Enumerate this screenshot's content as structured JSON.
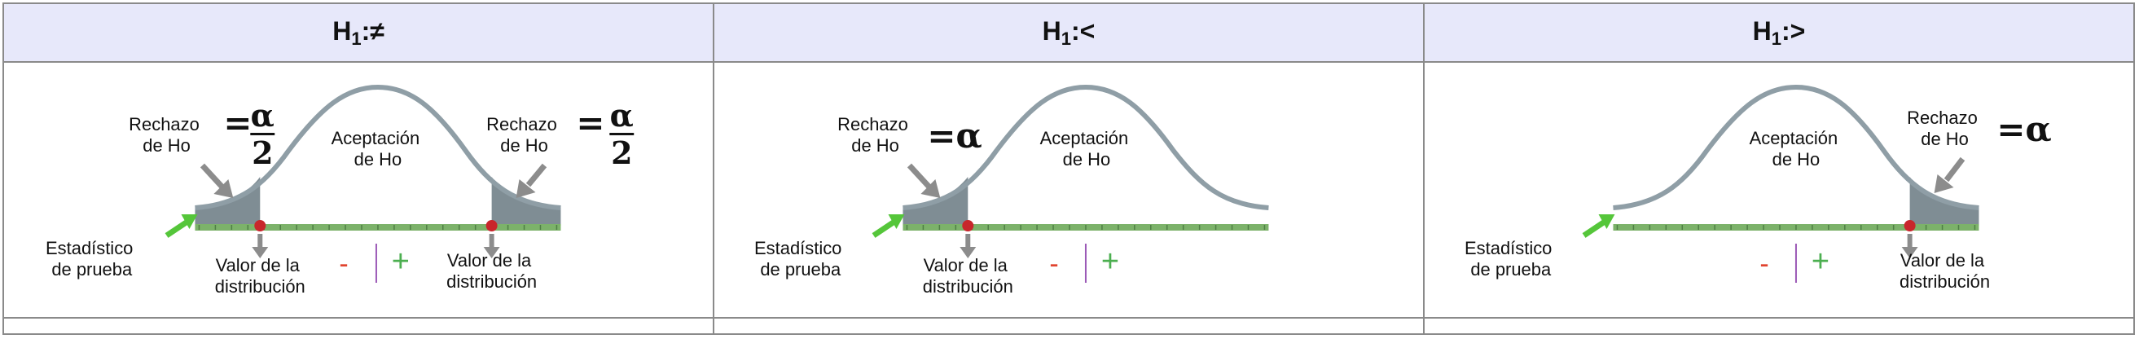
{
  "columns": [
    {
      "hyp_prefix": "H",
      "hyp_sub": "1",
      "hyp_sign": ":≠",
      "reject_label_lines": [
        "Rechazo",
        "de Ho"
      ],
      "reject_value": "=",
      "alpha_numerator": "α",
      "alpha_denominator": "2",
      "accept_label_lines": [
        "Aceptación",
        "de Ho"
      ],
      "stat_label_lines": [
        "Estadístico",
        "de prueba"
      ],
      "dist_label_lines": [
        "Valor de la",
        "distribución"
      ],
      "minus": "-",
      "plus": "+"
    },
    {
      "hyp_prefix": "H",
      "hyp_sub": "1",
      "hyp_sign": ":<",
      "reject_label_lines": [
        "Rechazo",
        "de Ho"
      ],
      "reject_value": "=α",
      "accept_label_lines": [
        "Aceptación",
        "de Ho"
      ],
      "stat_label_lines": [
        "Estadístico",
        "de prueba"
      ],
      "dist_label_lines": [
        "Valor de la",
        "distribución"
      ],
      "minus": "-",
      "plus": "+"
    },
    {
      "hyp_prefix": "H",
      "hyp_sub": "1",
      "hyp_sign": ":>",
      "reject_label_lines": [
        "Rechazo",
        "de Ho"
      ],
      "reject_value": "=α",
      "accept_label_lines": [
        "Aceptación",
        "de Ho"
      ],
      "stat_label_lines": [
        "Estadístico",
        "de prueba"
      ],
      "dist_label_lines": [
        "Valor de la",
        "distribución"
      ],
      "minus": "-",
      "plus": "+"
    }
  ],
  "colors": {
    "header_bg": "#e7e8fa",
    "curve": "#8f9ea6",
    "tail_fill": "#7f8d94",
    "axis": "#7cb26a",
    "axis_ticks": "#4f7f45",
    "critical_dot": "#c8262b",
    "arrow_gray": "#8c8c8c",
    "arrow_green": "#55c63a",
    "minus": "#e0442f",
    "plus": "#4caf50",
    "divider": "#9b59b6"
  }
}
